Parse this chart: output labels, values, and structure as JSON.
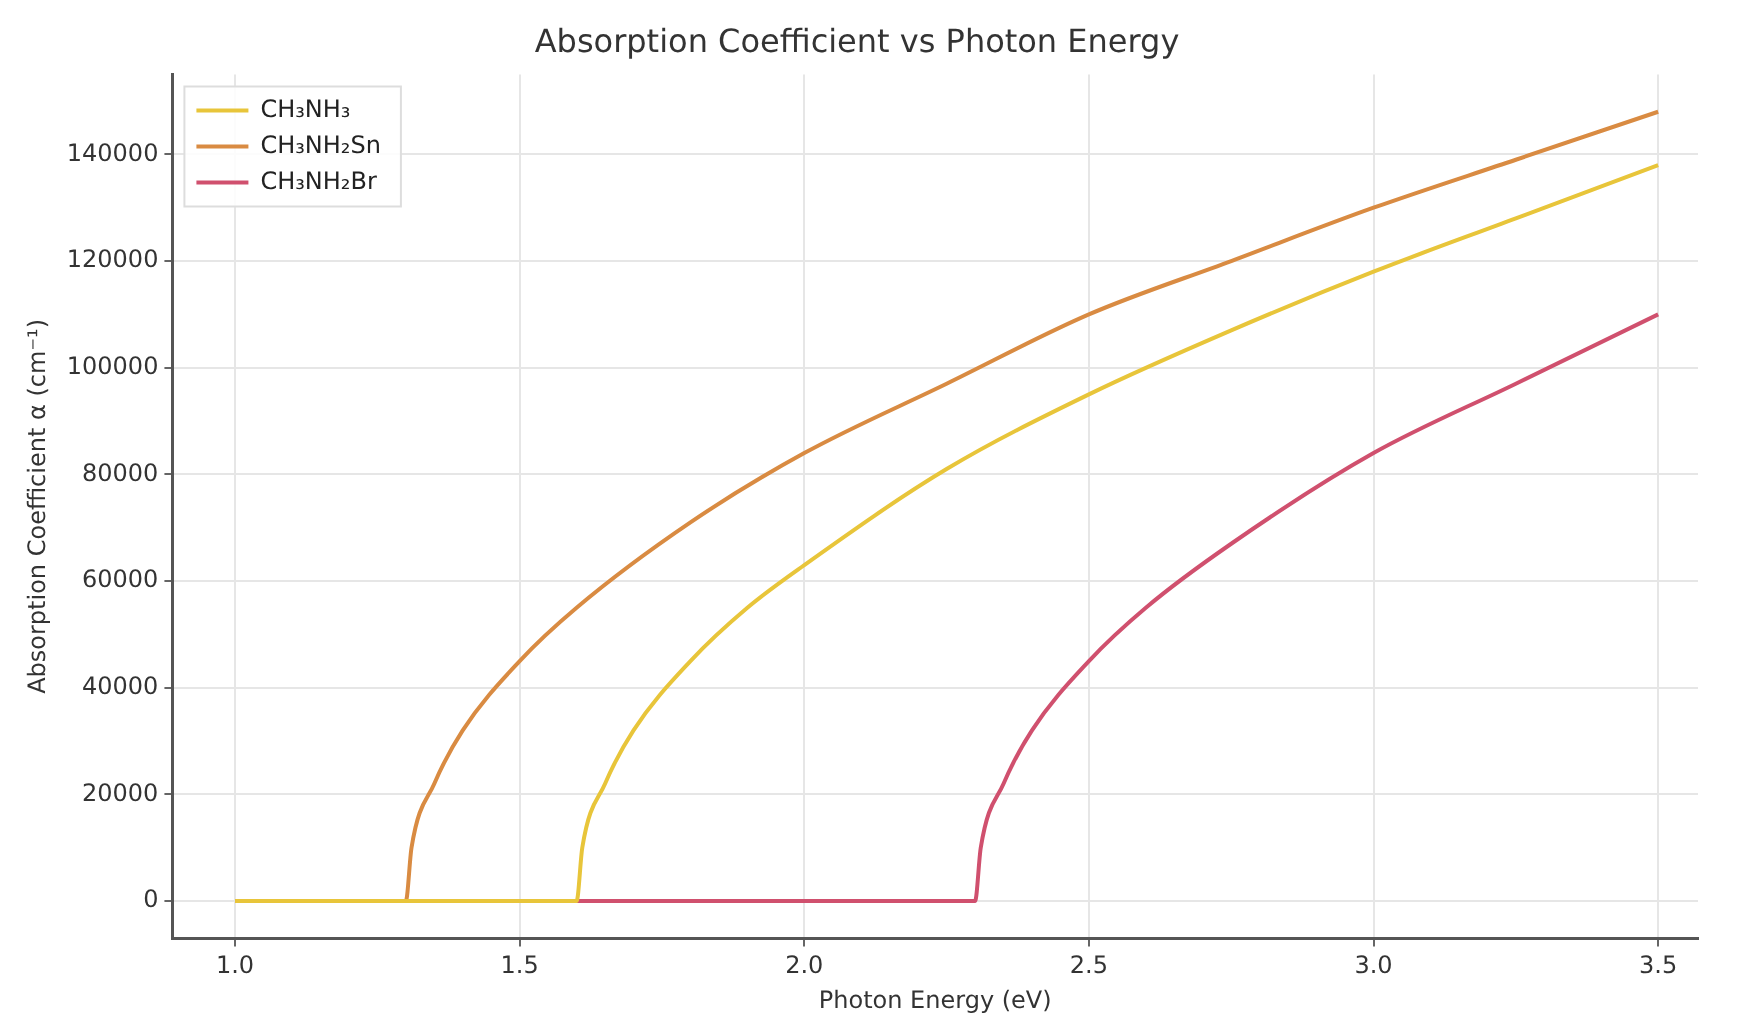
{
  "chart_data": {
    "type": "line",
    "title": "Absorption Coefficient vs Photon Energy",
    "xlabel": "Photon Energy (eV)",
    "ylabel": "Absorption Coefficient α (cm⁻¹)",
    "xlim": [
      0.89,
      3.57
    ],
    "xticks": [
      {
        "value": 1,
        "label": "1.0"
      },
      1.5,
      {
        "value": 2,
        "label": "2.0"
      },
      2.5,
      {
        "value": 3,
        "label": "3.0"
      },
      3.5
    ],
    "ylim": [
      -7000,
      155000
    ],
    "yticks": [
      0,
      20000,
      40000,
      60000,
      80000,
      100000,
      120000,
      140000
    ],
    "grid": true,
    "legend": "top left",
    "marker": "none",
    "line_style": "solid",
    "series": [
      {
        "name": "CH₃NH₃",
        "color": "#e8c53a",
        "x": [
          1.0,
          1.6,
          1.61,
          1.65,
          1.7,
          1.8,
          1.9,
          2.0,
          2.25,
          2.5,
          2.75,
          3.0,
          3.25,
          3.5
        ],
        "values": [
          0,
          0,
          10000,
          22000,
          32000,
          45000,
          55000,
          63000,
          81000,
          95000,
          107000,
          118000,
          128000,
          138000
        ]
      },
      {
        "name": "CH₃NH₂Sn",
        "color": "#d98b42",
        "x": [
          1.0,
          1.3,
          1.31,
          1.35,
          1.4,
          1.5,
          1.6,
          1.8,
          2.0,
          2.25,
          2.5,
          2.75,
          3.0,
          3.25,
          3.5
        ],
        "values": [
          0,
          0,
          10000,
          22000,
          32000,
          45000,
          55000,
          71000,
          84000,
          97000,
          110000,
          120000,
          130000,
          139000,
          148000
        ]
      },
      {
        "name": "CH₃NH₂Br",
        "color": "#d0506e",
        "x": [
          1.0,
          2.3,
          2.31,
          2.35,
          2.4,
          2.5,
          2.6,
          2.75,
          3.0,
          3.25,
          3.5
        ],
        "values": [
          0,
          0,
          10000,
          22000,
          32000,
          45000,
          55000,
          67000,
          84000,
          97000,
          110000
        ]
      }
    ]
  }
}
